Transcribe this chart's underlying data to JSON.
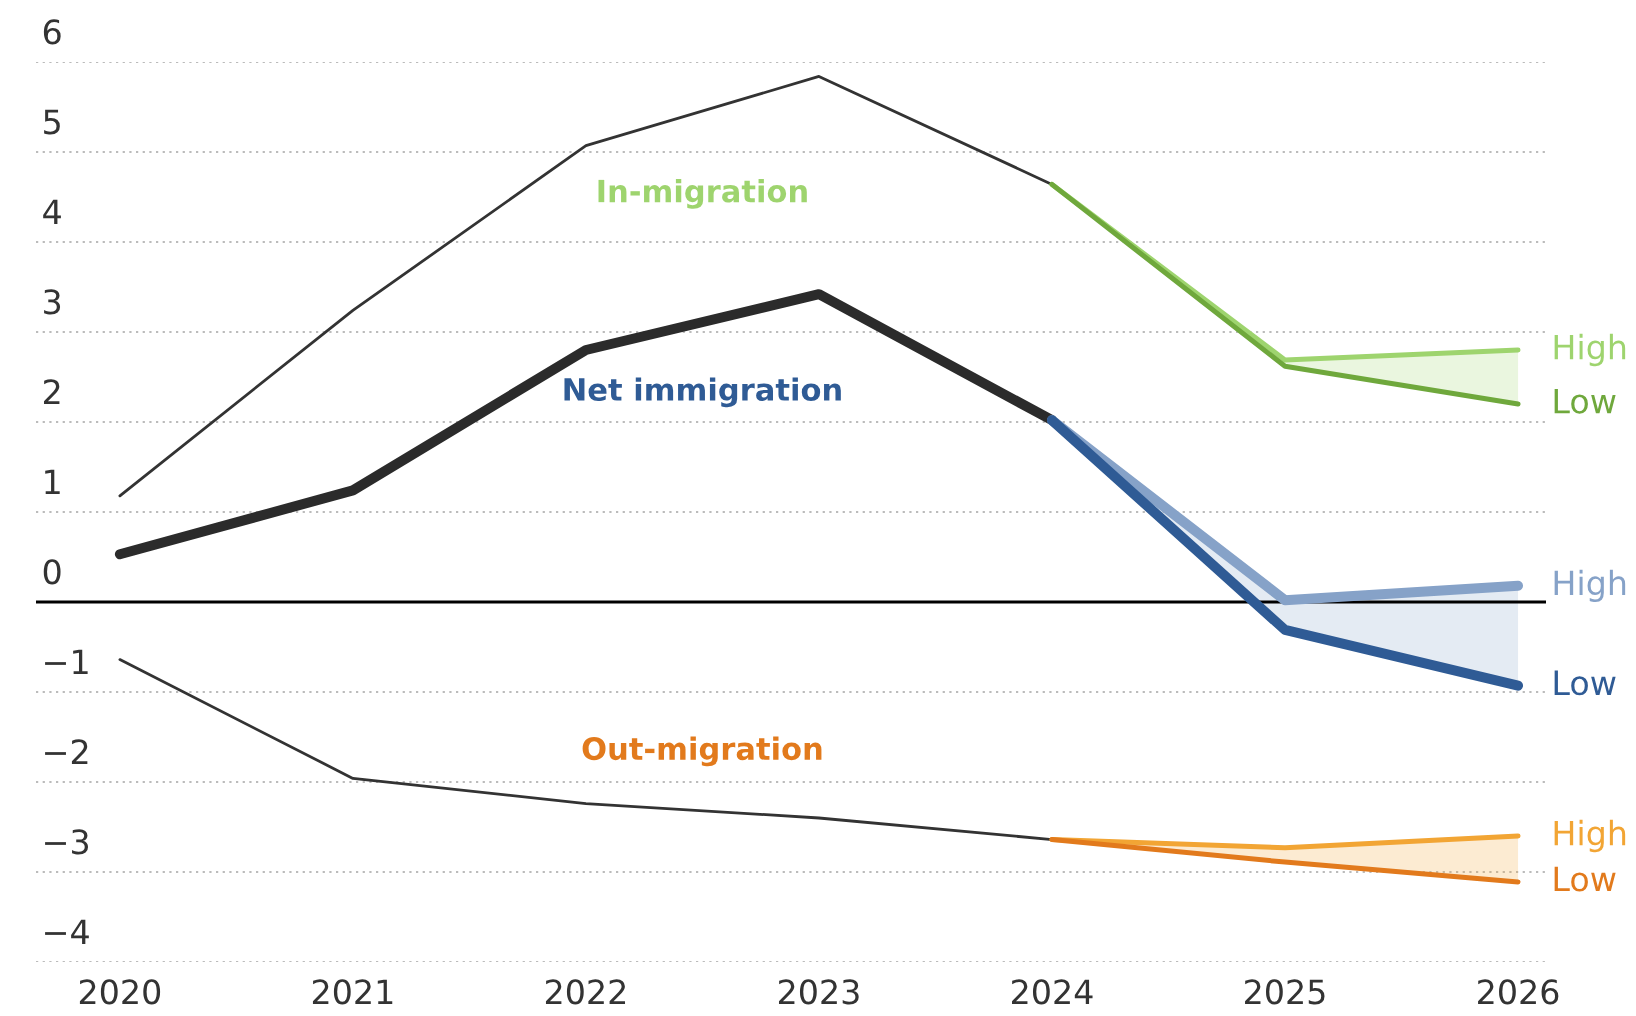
{
  "chart_data": {
    "type": "line",
    "x": [
      2020,
      2021,
      2022,
      2023,
      2024
    ],
    "series": [
      {
        "color": "#333333",
        "values": [
          1.18,
          3.24,
          5.07,
          5.84,
          4.64
        ]
      },
      {
        "color": "#2b2b2b",
        "values": [
          0.53,
          1.24,
          2.8,
          3.42,
          2.02
        ]
      },
      {
        "color": "#333333",
        "values": [
          -0.64,
          -1.96,
          -2.24,
          -2.4,
          -2.64
        ]
      },
      {
        "name": "High",
        "color": "#9ed46e",
        "x": [
          2024,
          2025,
          2026
        ],
        "values": [
          4.64,
          2.69,
          2.8
        ],
        "lower": [
          4.64,
          2.62,
          2.2
        ],
        "upper": [
          4.64,
          2.69,
          2.8
        ]
      },
      {
        "name": "Low",
        "color": "#6fa83c",
        "x": [
          2024,
          2025,
          2026
        ],
        "values": [
          4.64,
          2.62,
          2.2
        ]
      },
      {
        "name": "High",
        "color": "#86a2c8",
        "x": [
          2024,
          2025,
          2026
        ],
        "values": [
          2.02,
          0.02,
          0.18
        ],
        "lower": [
          2.02,
          -0.31,
          -0.93
        ],
        "upper": [
          2.02,
          0.02,
          0.18
        ]
      },
      {
        "name": "Low",
        "color": "#2f5b95",
        "x": [
          2024,
          2025,
          2026
        ],
        "values": [
          2.02,
          -0.31,
          -0.93
        ]
      },
      {
        "name": "High",
        "color": "#f2a534",
        "x": [
          2024,
          2025,
          2026
        ],
        "values": [
          -2.64,
          -2.73,
          -2.6
        ],
        "lower": [
          -2.64,
          -2.89,
          -3.11
        ],
        "upper": [
          -2.64,
          -2.73,
          -2.6
        ]
      },
      {
        "name": "Low",
        "color": "#e27a1c",
        "x": [
          2024,
          2025,
          2026
        ],
        "values": [
          -2.64,
          -2.89,
          -3.11
        ]
      }
    ],
    "annotations": [
      "In-migration",
      "Net immigration",
      "Out-migration"
    ],
    "xlim": [
      2019.64,
      2026.12
    ],
    "xticks": [
      2020,
      2021,
      2022,
      2023,
      2024,
      2025,
      2026
    ],
    "ylim": [
      -4,
      6
    ],
    "yticks": [
      -4,
      -3,
      -2,
      -1,
      0,
      1,
      2,
      3,
      4,
      5,
      6
    ],
    "ref_lines": [
      {
        "axis": "y",
        "value": 0,
        "color": "#000000"
      }
    ],
    "grid": "y",
    "legend": false,
    "marker": "none",
    "line_style": "solid"
  }
}
